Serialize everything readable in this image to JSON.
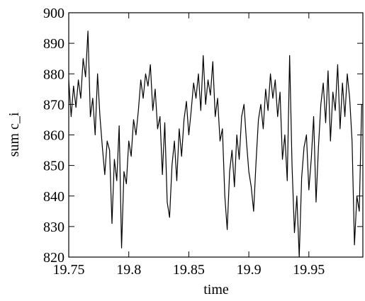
{
  "chart_data": {
    "type": "line",
    "x_label": "time",
    "y_label": "sum c_i",
    "x": [
      19.75,
      19.752,
      19.754,
      19.756,
      19.758,
      19.76,
      19.762,
      19.764,
      19.766,
      19.768,
      19.77,
      19.772,
      19.774,
      19.776,
      19.778,
      19.78,
      19.782,
      19.784,
      19.786,
      19.788,
      19.79,
      19.792,
      19.794,
      19.796,
      19.798,
      19.8,
      19.802,
      19.804,
      19.806,
      19.808,
      19.81,
      19.812,
      19.814,
      19.816,
      19.818,
      19.82,
      19.822,
      19.824,
      19.826,
      19.828,
      19.83,
      19.832,
      19.834,
      19.836,
      19.838,
      19.84,
      19.842,
      19.844,
      19.846,
      19.848,
      19.85,
      19.852,
      19.854,
      19.856,
      19.858,
      19.86,
      19.862,
      19.864,
      19.866,
      19.868,
      19.87,
      19.872,
      19.874,
      19.876,
      19.878,
      19.88,
      19.882,
      19.884,
      19.886,
      19.888,
      19.89,
      19.892,
      19.894,
      19.896,
      19.898,
      19.9,
      19.902,
      19.904,
      19.906,
      19.908,
      19.91,
      19.912,
      19.914,
      19.916,
      19.918,
      19.92,
      19.922,
      19.924,
      19.926,
      19.928,
      19.93,
      19.932,
      19.934,
      19.936,
      19.938,
      19.94,
      19.942,
      19.944,
      19.946,
      19.948,
      19.95,
      19.952,
      19.954,
      19.956,
      19.958,
      19.96,
      19.962,
      19.964,
      19.966,
      19.968,
      19.97,
      19.972,
      19.974,
      19.976,
      19.978,
      19.98,
      19.982,
      19.984,
      19.986,
      19.988,
      19.99,
      19.992,
      19.994
    ],
    "series": [
      {
        "color": "#000000",
        "values": [
          878,
          866,
          876,
          869,
          878,
          872,
          885,
          879,
          894,
          866,
          872,
          860,
          880,
          866,
          856,
          847,
          858,
          855,
          831,
          852,
          845,
          863,
          823,
          848,
          844,
          858,
          853,
          865,
          860,
          868,
          878,
          872,
          880,
          876,
          883,
          868,
          875,
          862,
          866,
          847,
          864,
          838,
          833,
          850,
          858,
          845,
          862,
          853,
          865,
          871,
          860,
          868,
          877,
          872,
          880,
          868,
          886,
          870,
          878,
          873,
          884,
          866,
          872,
          858,
          862,
          840,
          829,
          848,
          855,
          843,
          860,
          852,
          866,
          870,
          858,
          848,
          843,
          835,
          851,
          865,
          870,
          862,
          875,
          868,
          880,
          872,
          878,
          866,
          874,
          852,
          860,
          845,
          886,
          850,
          828,
          840,
          820,
          846,
          856,
          860,
          842,
          852,
          866,
          838,
          856,
          870,
          877,
          864,
          881,
          858,
          874,
          868,
          883,
          862,
          877,
          866,
          880,
          872,
          858,
          824,
          840,
          835,
          870
        ]
      }
    ],
    "xlim": [
      19.75,
      19.995
    ],
    "ylim": [
      820,
      900
    ],
    "xticks": [
      19.75,
      19.8,
      19.85,
      19.9,
      19.95
    ],
    "yticks": [
      820,
      830,
      840,
      850,
      860,
      870,
      880,
      890,
      900
    ]
  }
}
